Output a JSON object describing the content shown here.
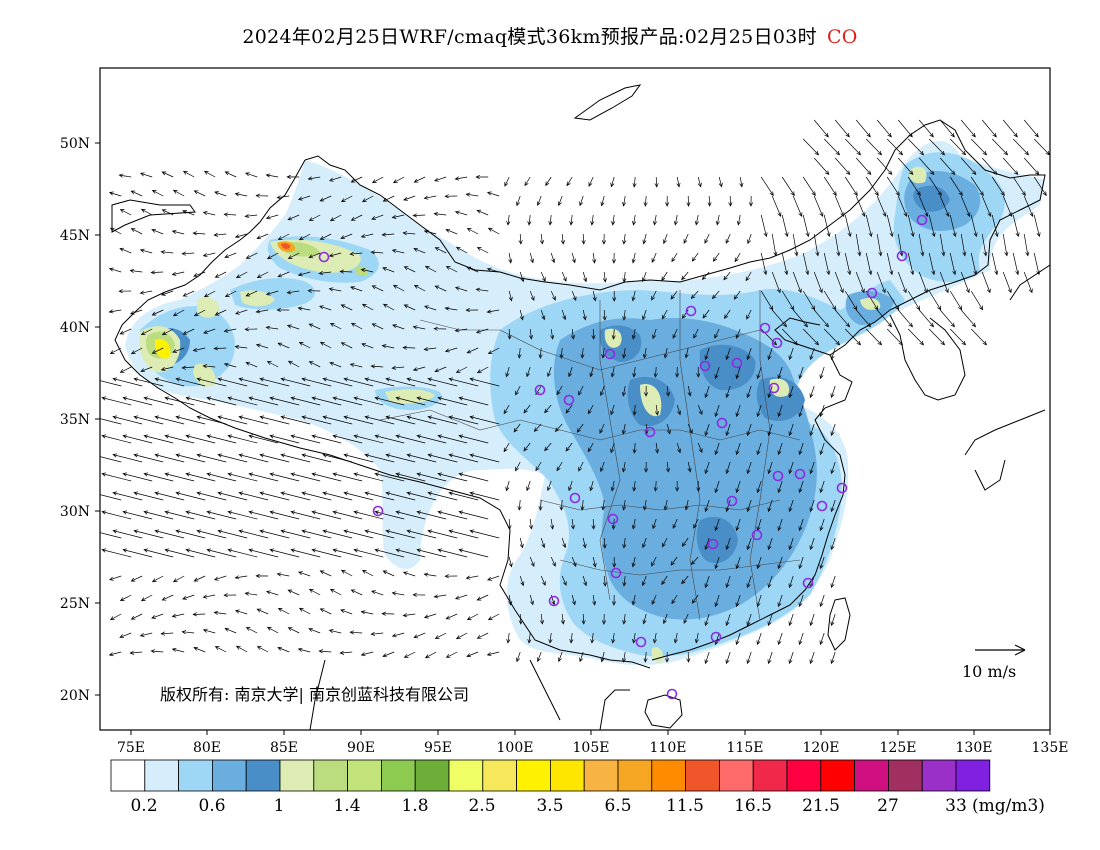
{
  "title": {
    "text": "2024年02月25日WRF/cmaq模式36km预报产品:02月25日03时",
    "species": "CO"
  },
  "map": {
    "lon_range": [
      73,
      135
    ],
    "lat_range": [
      18,
      54
    ],
    "lat_ticks": [
      "50N",
      "45N",
      "40N",
      "35N",
      "30N",
      "25N",
      "20N"
    ],
    "lon_ticks": [
      "75E",
      "80E",
      "85E",
      "90E",
      "95E",
      "100E",
      "105E",
      "110E",
      "115E",
      "120E",
      "125E",
      "130E",
      "135E"
    ],
    "copyright": "版权所有: 南京大学| 南京创蓝科技有限公司",
    "wind_reference": "10 m/s"
  },
  "colorbar": {
    "colors": [
      "#ffffff",
      "#d6eefb",
      "#9ed6f5",
      "#6aaee0",
      "#4a8ec8",
      "#dcecb4",
      "#bcdc80",
      "#c2e27a",
      "#8ccb50",
      "#6cae38",
      "#f0ff66",
      "#f5e85a",
      "#fff200",
      "#ffe600",
      "#f7b442",
      "#f5a623",
      "#ff8c00",
      "#f0562a",
      "#ff6a6a",
      "#f0284a",
      "#ff0040",
      "#ff0000",
      "#d01080",
      "#a03060",
      "#9a30c8",
      "#8020e0"
    ],
    "labels": [
      "0.2",
      "0.6",
      "1",
      "1.4",
      "1.8",
      "2.5",
      "3.5",
      "6.5",
      "11.5",
      "16.5",
      "21.5",
      "27",
      "33"
    ],
    "unit": "(mg/m3)"
  },
  "stations_color": "#8a2be2"
}
